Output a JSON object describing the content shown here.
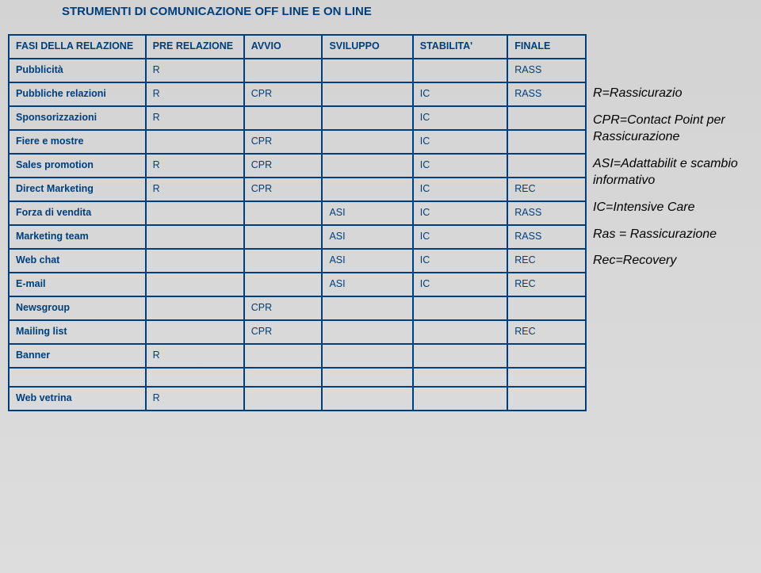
{
  "title": "STRUMENTI DI COMUNICAZIONE OFF LINE E ON LINE",
  "headers": {
    "c1": "FASI DELLA RELAZIONE",
    "c2": "PRE RELAZIONE",
    "c3": "AVVIO",
    "c4": "SVILUPPO",
    "c5": "STABILITA'",
    "c6": "FINALE"
  },
  "rows": [
    {
      "label": "Pubblicità",
      "c2": "R",
      "c3": "",
      "c4": "",
      "c5": "",
      "c6": "RASS"
    },
    {
      "label": "Pubbliche relazioni",
      "c2": "R",
      "c3": "CPR",
      "c4": "",
      "c5": "IC",
      "c6": "RASS"
    },
    {
      "label": "Sponsorizzazioni",
      "c2": "R",
      "c3": "",
      "c4": "",
      "c5": "IC",
      "c6": ""
    },
    {
      "label": "Fiere e mostre",
      "c2": "",
      "c3": "CPR",
      "c4": "",
      "c5": "IC",
      "c6": ""
    },
    {
      "label": "Sales promotion",
      "c2": "R",
      "c3": "CPR",
      "c4": "",
      "c5": "IC",
      "c6": ""
    },
    {
      "label": "Direct Marketing",
      "c2": "R",
      "c3": "CPR",
      "c4": "",
      "c5": "IC",
      "c6": "REC"
    },
    {
      "label": "Forza  di vendita",
      "c2": "",
      "c3": "",
      "c4": "ASI",
      "c5": "IC",
      "c6": "RASS"
    },
    {
      "label": "Marketing team",
      "c2": "",
      "c3": "",
      "c4": "ASI",
      "c5": "IC",
      "c6": "RASS"
    },
    {
      "label": "Web chat",
      "c2": "",
      "c3": "",
      "c4": "ASI",
      "c5": "IC",
      "c6": "REC"
    },
    {
      "label": "E-mail",
      "c2": "",
      "c3": "",
      "c4": "ASI",
      "c5": "IC",
      "c6": "REC"
    },
    {
      "label": "Newsgroup",
      "c2": "",
      "c3": "CPR",
      "c4": "",
      "c5": "",
      "c6": ""
    },
    {
      "label": "Mailing list",
      "c2": "",
      "c3": "CPR",
      "c4": "",
      "c5": "",
      "c6": "REC"
    },
    {
      "label": "Banner",
      "c2": "R",
      "c3": "",
      "c4": "",
      "c5": "",
      "c6": ""
    }
  ],
  "footer_row": {
    "label": "Web vetrina",
    "c2": "R",
    "c3": "",
    "c4": "",
    "c5": "",
    "c6": ""
  },
  "legend": {
    "l1": "R=Rassicurazio",
    "l2": "CPR=Contact Point per Rassicurazione",
    "l3": "ASI=Adattabilit e scambio informativo",
    "l4": "IC=Intensive Care",
    "l5": "Ras = Rassicurazione",
    "l6": "Rec=Recovery"
  },
  "colors": {
    "border": "#003f7d",
    "text": "#003f7d",
    "background": "#d6d6d6"
  },
  "font": {
    "family": "Verdana",
    "title_size": 15,
    "cell_size": 12.5,
    "legend_size": 16
  }
}
